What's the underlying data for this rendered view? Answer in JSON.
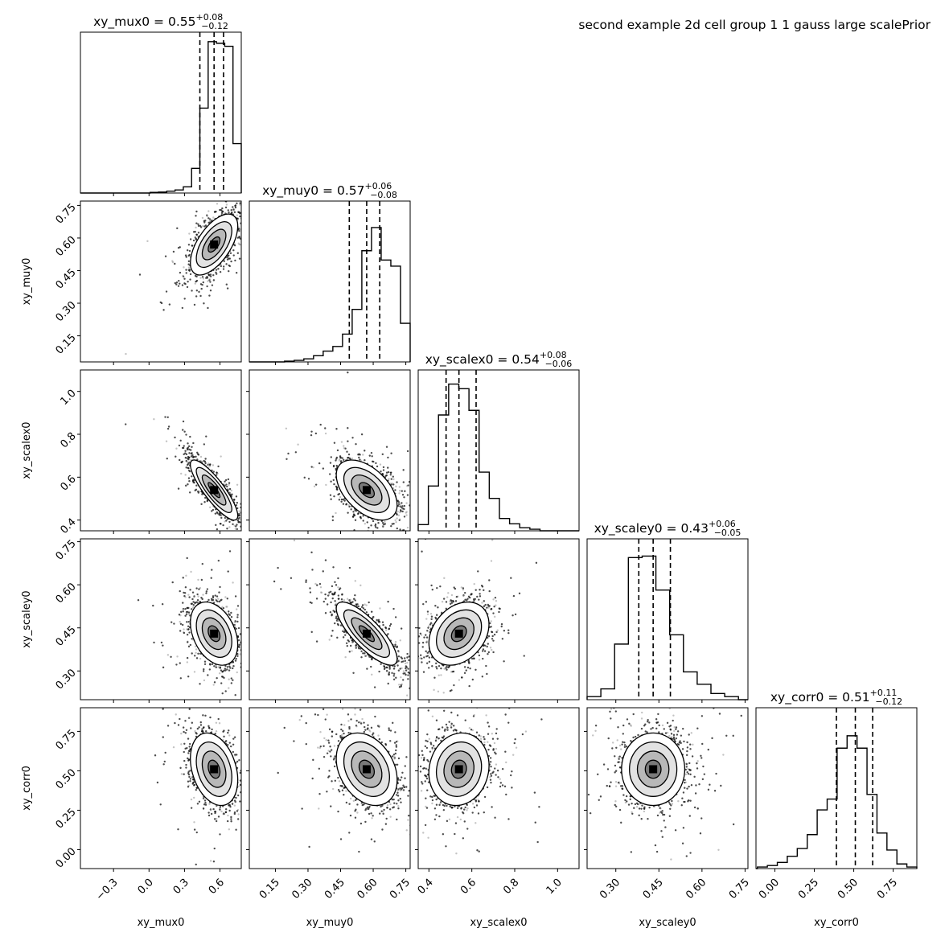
{
  "chart_data": {
    "type": "scatter",
    "subtype": "corner-plot",
    "title": "second example 2d cell group 1 1 gauss large scalePrior",
    "parameters": [
      {
        "name": "xy_mux0",
        "label": "xy_mux0",
        "title_main": "xy_mux0 = 0.55",
        "title_sup": "+0.08",
        "title_sub": "−0.12",
        "median": 0.55,
        "q16": 0.43,
        "q84": 0.63,
        "range": [
          -0.58,
          0.78
        ],
        "ticks": [
          -0.3,
          0.0,
          0.3,
          0.6
        ],
        "tick_labels": [
          "−0.3",
          "0.0",
          "0.3",
          "0.6"
        ],
        "sigma": 0.1
      },
      {
        "name": "xy_muy0",
        "label": "xy_muy0",
        "title_main": "xy_muy0 = 0.57",
        "title_sup": "+0.06",
        "title_sub": "−0.08",
        "median": 0.57,
        "q16": 0.49,
        "q84": 0.63,
        "range": [
          0.03,
          0.77
        ],
        "ticks": [
          0.15,
          0.3,
          0.45,
          0.6,
          0.75
        ],
        "tick_labels": [
          "0.15",
          "0.30",
          "0.45",
          "0.60",
          "0.75"
        ],
        "sigma": 0.07
      },
      {
        "name": "xy_scalex0",
        "label": "xy_scalex0",
        "title_main": "xy_scalex0 = 0.54",
        "title_sup": "+0.08",
        "title_sub": "−0.06",
        "median": 0.54,
        "q16": 0.48,
        "q84": 0.62,
        "range": [
          0.35,
          1.1
        ],
        "ticks": [
          0.4,
          0.6,
          0.8,
          1.0
        ],
        "tick_labels": [
          "0.4",
          "0.6",
          "0.8",
          "1.0"
        ],
        "sigma": 0.07
      },
      {
        "name": "xy_scaley0",
        "label": "xy_scaley0",
        "title_main": "xy_scaley0 = 0.43",
        "title_sup": "+0.06",
        "title_sub": "−0.05",
        "median": 0.43,
        "q16": 0.38,
        "q84": 0.49,
        "range": [
          0.2,
          0.76
        ],
        "ticks": [
          0.3,
          0.45,
          0.6,
          0.75
        ],
        "tick_labels": [
          "0.30",
          "0.45",
          "0.60",
          "0.75"
        ],
        "sigma": 0.055
      },
      {
        "name": "xy_corr0",
        "label": "xy_corr0",
        "title_main": "xy_corr0 = 0.51",
        "title_sup": "+0.11",
        "title_sub": "−0.12",
        "median": 0.51,
        "q16": 0.39,
        "q84": 0.62,
        "range": [
          -0.12,
          0.9
        ],
        "ticks": [
          0.0,
          0.25,
          0.5,
          0.75
        ],
        "tick_labels": [
          "0.00",
          "0.25",
          "0.50",
          "0.75"
        ],
        "sigma": 0.115
      }
    ],
    "correlations": [
      [
        1.0,
        0.6,
        -0.85,
        -0.35,
        -0.3
      ],
      [
        0.6,
        1.0,
        -0.5,
        -0.8,
        -0.3
      ],
      [
        -0.85,
        -0.5,
        1.0,
        0.3,
        0.1
      ],
      [
        -0.35,
        -0.8,
        0.3,
        1.0,
        0.0
      ],
      [
        -0.3,
        -0.3,
        0.1,
        0.0,
        1.0
      ]
    ],
    "histograms": [
      [
        0.004,
        0.006,
        0.012,
        0.02,
        0.04,
        0.16,
        0.55,
        0.98,
        0.97,
        0.95,
        0.32
      ],
      [
        0.005,
        0.01,
        0.02,
        0.04,
        0.07,
        0.1,
        0.18,
        0.34,
        0.72,
        0.87,
        0.66,
        0.62,
        0.25
      ],
      [
        0.04,
        0.29,
        0.75,
        0.95,
        0.92,
        0.78,
        0.38,
        0.21,
        0.08,
        0.045,
        0.02,
        0.01
      ],
      [
        0.02,
        0.07,
        0.36,
        0.92,
        0.93,
        0.71,
        0.42,
        0.18,
        0.1,
        0.04,
        0.02
      ],
      [
        0.01,
        0.02,
        0.04,
        0.08,
        0.13,
        0.22,
        0.38,
        0.45,
        0.78,
        0.86,
        0.78,
        0.48,
        0.23,
        0.12,
        0.03,
        0.01
      ]
    ],
    "grid": false,
    "legend": "none"
  }
}
